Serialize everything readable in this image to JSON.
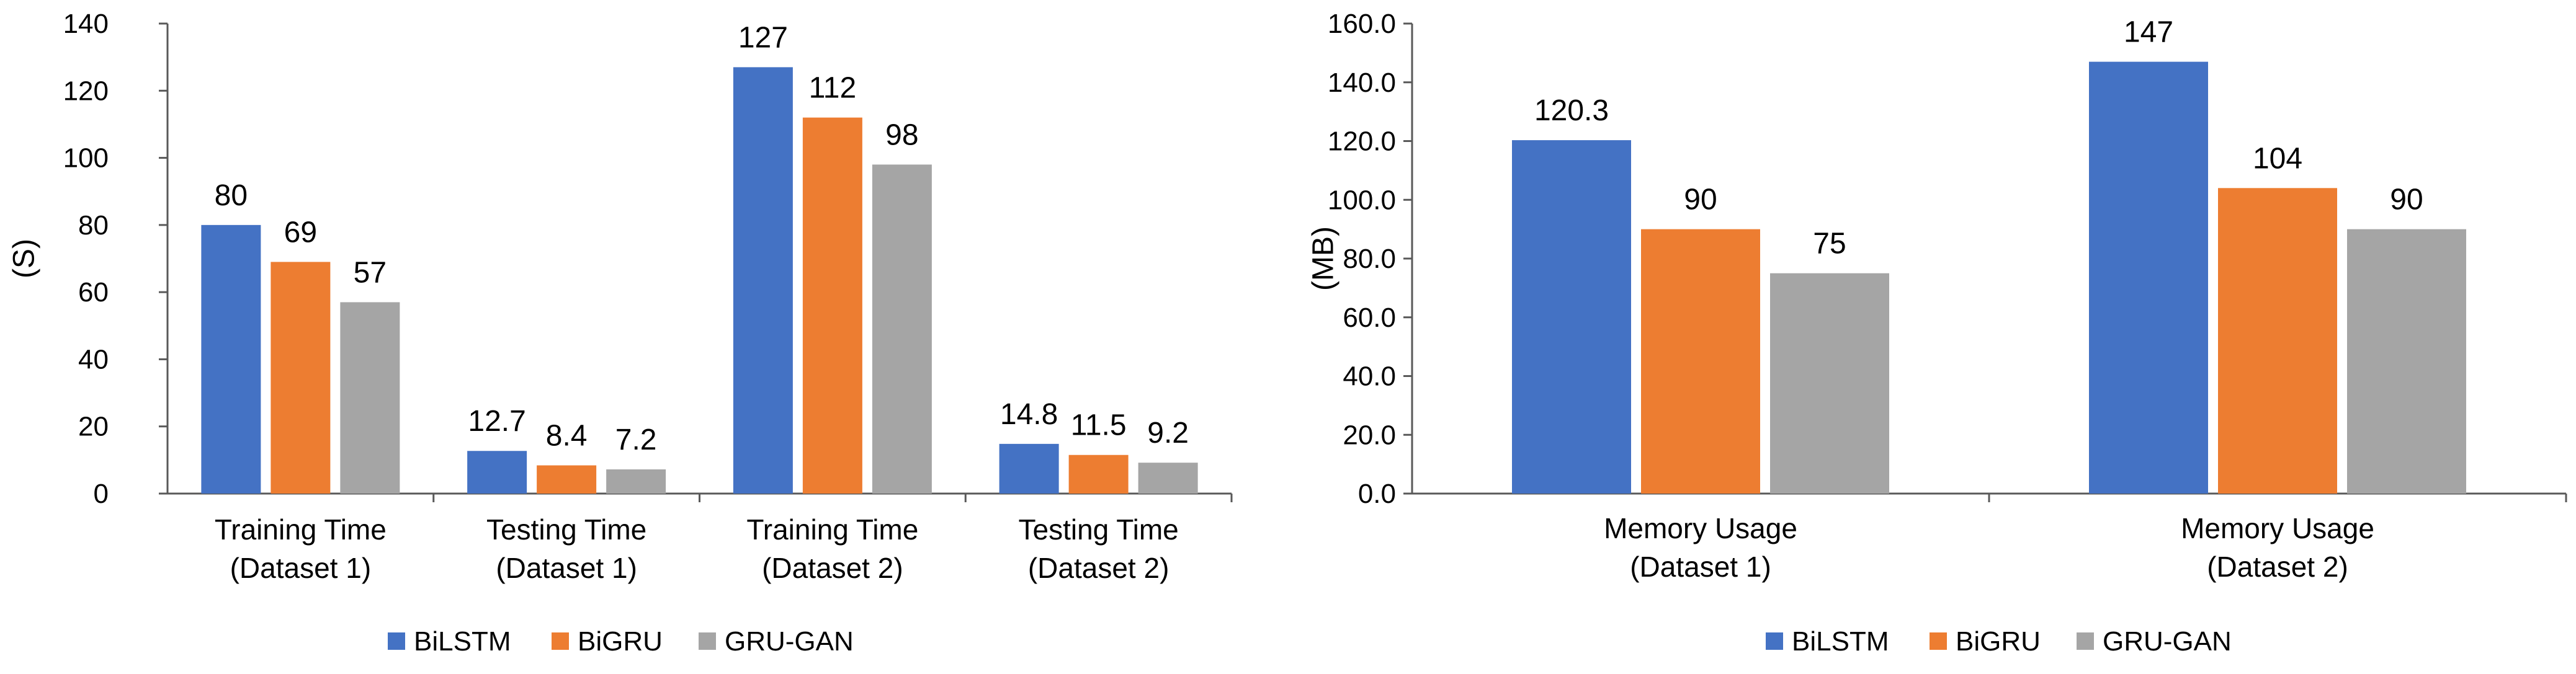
{
  "chart_data": [
    {
      "type": "bar",
      "title": "",
      "xlabel": "",
      "ylabel": "(S)",
      "ylim": [
        0,
        140
      ],
      "ytick_step": 20,
      "ytick_decimals": 0,
      "categories": [
        [
          "Training Time",
          "(Dataset 1)"
        ],
        [
          "Testing Time",
          "(Dataset 1)"
        ],
        [
          "Training Time",
          "(Dataset 2)"
        ],
        [
          "Testing Time",
          "(Dataset 2)"
        ]
      ],
      "series": [
        {
          "name": "BiLSTM",
          "color": "#4472C4",
          "values": [
            80,
            12.7,
            127,
            14.8
          ],
          "labels": [
            "80",
            "12.7",
            "127",
            "14.8"
          ]
        },
        {
          "name": "BiGRU",
          "color": "#ED7D31",
          "values": [
            69,
            8.4,
            112,
            11.5
          ],
          "labels": [
            "69",
            "8.4",
            "112",
            "11.5"
          ]
        },
        {
          "name": "GRU-GAN",
          "color": "#A5A5A5",
          "values": [
            57,
            7.2,
            98,
            9.2
          ],
          "labels": [
            "57",
            "7.2",
            "98",
            "9.2"
          ]
        }
      ],
      "legend": "bottom",
      "grid": false
    },
    {
      "type": "bar",
      "title": "",
      "xlabel": "",
      "ylabel": "(MB)",
      "ylim": [
        0,
        160
      ],
      "ytick_step": 20,
      "ytick_decimals": 1,
      "categories": [
        [
          "Memory Usage",
          "(Dataset 1)"
        ],
        [
          "Memory Usage",
          "(Dataset 2)"
        ]
      ],
      "series": [
        {
          "name": "BiLSTM",
          "color": "#4472C4",
          "values": [
            120.3,
            147
          ],
          "labels": [
            "120.3",
            "147"
          ]
        },
        {
          "name": "BiGRU",
          "color": "#ED7D31",
          "values": [
            90,
            104
          ],
          "labels": [
            "90",
            "104"
          ]
        },
        {
          "name": "GRU-GAN",
          "color": "#A5A5A5",
          "values": [
            75,
            90
          ],
          "labels": [
            "75",
            "90"
          ]
        }
      ],
      "legend": "bottom",
      "grid": false
    }
  ]
}
